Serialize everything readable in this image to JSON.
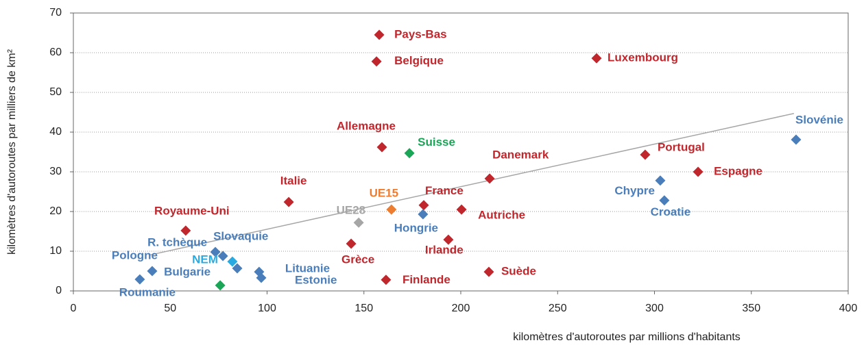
{
  "chart_data": {
    "type": "scatter",
    "x_label": "kilomètres d'autoroutes par millions d'habitants",
    "y_label": "kilomètres d'autoroutes par milliers de km²",
    "xlim": [
      0,
      400
    ],
    "xticks": [
      0,
      50,
      100,
      150,
      200,
      250,
      300,
      350,
      400
    ],
    "ylim": [
      0,
      70
    ],
    "yticks": [
      0,
      10,
      20,
      30,
      40,
      50,
      60,
      70
    ],
    "grid": true,
    "trendline": {
      "color": "#a6a6a6",
      "x": [
        39,
        372
      ],
      "y": [
        9,
        44.7
      ]
    },
    "points": [
      {
        "label": "Pays-Bas",
        "x": 157.9,
        "y": 64.5,
        "color": "#c0272d"
      },
      {
        "label": "Belgique",
        "x": 156.5,
        "y": 57.8,
        "color": "#c0272d"
      },
      {
        "label": "Luxembourg",
        "x": 270.1,
        "y": 58.6,
        "color": "#c0272d"
      },
      {
        "label": "Slovénie",
        "x": 373.1,
        "y": 38.1,
        "color": "#4a7ebb"
      },
      {
        "label": "Allemagne",
        "x": 159.3,
        "y": 36.2,
        "color": "#c0272d"
      },
      {
        "label": "Suisse",
        "x": 173.5,
        "y": 34.7,
        "color": "#1aa557"
      },
      {
        "label": "Portugal",
        "x": 295.2,
        "y": 34.3,
        "color": "#c0272d"
      },
      {
        "label": "Danemark",
        "x": 214.9,
        "y": 28.3,
        "color": "#c0272d"
      },
      {
        "label": "Espagne",
        "x": 322.5,
        "y": 30,
        "color": "#c0272d"
      },
      {
        "label": "Chypre",
        "x": 303,
        "y": 27.8,
        "color": "#4a7ebb"
      },
      {
        "label": "Croatie",
        "x": 305.1,
        "y": 22.8,
        "color": "#4a7ebb"
      },
      {
        "label": "Italie",
        "x": 111.2,
        "y": 22.4,
        "color": "#c0272d"
      },
      {
        "label": "UE15",
        "x": 164.2,
        "y": 20.5,
        "color": "#ed7d31"
      },
      {
        "label": "France",
        "x": 180.9,
        "y": 21.6,
        "color": "#c0272d"
      },
      {
        "label": "Autriche",
        "x": 200.4,
        "y": 20.5,
        "color": "#c0272d"
      },
      {
        "label": "UE28",
        "x": 147.3,
        "y": 17.2,
        "color": "#a6a6a6"
      },
      {
        "label": "Hongrie",
        "x": 180.5,
        "y": 19.3,
        "color": "#4a7ebb"
      },
      {
        "label": "Royaume-Uni",
        "x": 58,
        "y": 15.2,
        "color": "#c0272d"
      },
      {
        "label": "Grèce",
        "x": 143.4,
        "y": 11.9,
        "color": "#c0272d"
      },
      {
        "label": "Irlande",
        "x": 193.6,
        "y": 12.9,
        "color": "#c0272d"
      },
      {
        "label": "Slovaquie",
        "x": 77.2,
        "y": 8.8,
        "color": "#4a7ebb"
      },
      {
        "label": "R. tchèque",
        "x": 73.3,
        "y": 9.8,
        "color": "#4a7ebb"
      },
      {
        "label": "NEM",
        "x": 82.1,
        "y": 7.4,
        "color": "#29abe2"
      },
      {
        "label": "Pologne",
        "x": 40.7,
        "y": 5,
        "color": "#4a7ebb"
      },
      {
        "label": "Bulgarie",
        "x": 75.8,
        "y": 1.4,
        "color": "#1aa557",
        "label_color": "#4a7ebb"
      },
      {
        "label": "Roumanie",
        "x": 34.3,
        "y": 2.9,
        "color": "#4a7ebb"
      },
      {
        "label": "Lituanie",
        "x": 95.9,
        "y": 4.8,
        "color": "#4a7ebb"
      },
      {
        "label": "Estonie",
        "x": 97,
        "y": 3.3,
        "color": "#4a7ebb"
      },
      {
        "label": null,
        "x": 84.6,
        "y": 5.7,
        "color": "#4a7ebb"
      },
      {
        "label": "Finlande",
        "x": 161.4,
        "y": 2.8,
        "color": "#c0272d"
      },
      {
        "label": "Suède",
        "x": 214.5,
        "y": 4.8,
        "color": "#c0272d"
      }
    ]
  }
}
